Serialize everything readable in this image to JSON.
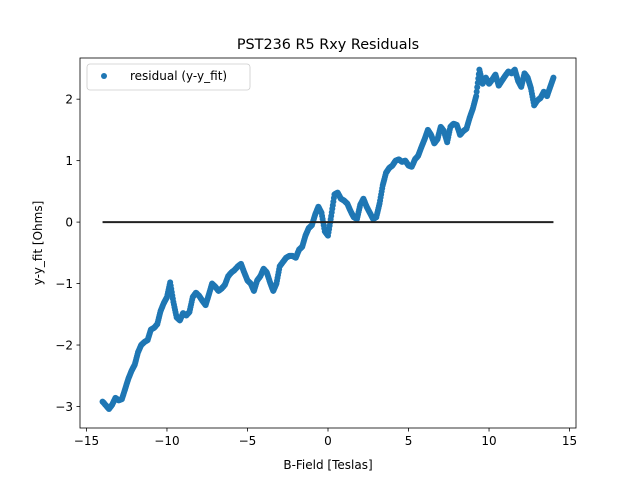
{
  "chart_data": {
    "type": "scatter",
    "title": "PST236 R5 Rxy Residuals",
    "xlabel": "B-Field [Teslas]",
    "ylabel": "y-y_fit [Ohms]",
    "xlim": [
      -15.4,
      15.4
    ],
    "ylim": [
      -3.35,
      2.67
    ],
    "xticks": [
      -15,
      -10,
      -5,
      0,
      5,
      10,
      15
    ],
    "xtick_labels": [
      "−15",
      "−10",
      "−5",
      "0",
      "5",
      "10",
      "15"
    ],
    "yticks": [
      -3,
      -2,
      -1,
      0,
      1,
      2
    ],
    "ytick_labels": [
      "−3",
      "−2",
      "−1",
      "0",
      "1",
      "2"
    ],
    "grid": false,
    "legend_position": "top-left",
    "series": [
      {
        "name": "residual (y-y_fit)",
        "kind": "scatter",
        "color": "#1f77b4",
        "x": [
          -14.0,
          -13.8,
          -13.6,
          -13.4,
          -13.2,
          -13.0,
          -12.8,
          -12.6,
          -12.4,
          -12.2,
          -12.0,
          -11.8,
          -11.6,
          -11.4,
          -11.2,
          -11.0,
          -10.8,
          -10.6,
          -10.4,
          -10.2,
          -10.0,
          -9.8,
          -9.6,
          -9.4,
          -9.2,
          -9.0,
          -8.8,
          -8.6,
          -8.4,
          -8.2,
          -8.0,
          -7.8,
          -7.6,
          -7.4,
          -7.2,
          -7.0,
          -6.8,
          -6.6,
          -6.4,
          -6.2,
          -6.0,
          -5.8,
          -5.6,
          -5.4,
          -5.2,
          -5.0,
          -4.8,
          -4.6,
          -4.4,
          -4.2,
          -4.0,
          -3.8,
          -3.6,
          -3.4,
          -3.2,
          -3.0,
          -2.8,
          -2.6,
          -2.4,
          -2.2,
          -2.0,
          -1.8,
          -1.6,
          -1.4,
          -1.2,
          -1.0,
          -0.8,
          -0.6,
          -0.4,
          -0.2,
          0.0,
          0.2,
          0.4,
          0.6,
          0.8,
          1.0,
          1.2,
          1.4,
          1.6,
          1.8,
          2.0,
          2.2,
          2.4,
          2.6,
          2.8,
          3.0,
          3.2,
          3.4,
          3.6,
          3.8,
          4.0,
          4.2,
          4.4,
          4.6,
          4.8,
          5.0,
          5.2,
          5.4,
          5.6,
          5.8,
          6.0,
          6.2,
          6.4,
          6.6,
          6.8,
          7.0,
          7.2,
          7.4,
          7.6,
          7.8,
          8.0,
          8.2,
          8.4,
          8.6,
          8.8,
          9.0,
          9.2,
          9.4,
          9.6,
          9.8,
          10.0,
          10.2,
          10.4,
          10.6,
          10.8,
          11.0,
          11.2,
          11.4,
          11.6,
          11.8,
          12.0,
          12.2,
          12.4,
          12.6,
          12.8,
          13.0,
          13.2,
          13.4,
          13.6,
          13.8,
          14.0
        ],
        "y": [
          -2.92,
          -2.98,
          -3.04,
          -2.97,
          -2.86,
          -2.9,
          -2.88,
          -2.72,
          -2.55,
          -2.42,
          -2.32,
          -2.12,
          -2.0,
          -1.95,
          -1.92,
          -1.75,
          -1.72,
          -1.66,
          -1.45,
          -1.32,
          -1.22,
          -0.98,
          -1.3,
          -1.55,
          -1.6,
          -1.48,
          -1.52,
          -1.46,
          -1.22,
          -1.15,
          -1.2,
          -1.28,
          -1.35,
          -1.18,
          -1.0,
          -1.05,
          -1.12,
          -1.08,
          -1.02,
          -0.88,
          -0.82,
          -0.78,
          -0.72,
          -0.68,
          -0.82,
          -0.95,
          -1.0,
          -1.12,
          -0.95,
          -0.88,
          -0.76,
          -0.82,
          -0.98,
          -1.12,
          -1.0,
          -0.72,
          -0.65,
          -0.58,
          -0.55,
          -0.55,
          -0.58,
          -0.45,
          -0.4,
          -0.22,
          -0.1,
          -0.05,
          0.12,
          0.25,
          0.15,
          -0.15,
          -0.22,
          0.1,
          0.45,
          0.48,
          0.38,
          0.35,
          0.3,
          0.18,
          0.08,
          0.05,
          0.28,
          0.38,
          0.25,
          0.15,
          0.05,
          0.08,
          0.3,
          0.6,
          0.8,
          0.88,
          0.92,
          1.0,
          1.02,
          0.98,
          1.0,
          0.92,
          0.9,
          1.02,
          1.08,
          1.22,
          1.35,
          1.5,
          1.42,
          1.28,
          1.35,
          1.55,
          1.48,
          1.3,
          1.55,
          1.6,
          1.58,
          1.42,
          1.48,
          1.52,
          1.7,
          1.85,
          2.05,
          2.48,
          2.25,
          2.35,
          2.25,
          2.32,
          2.4,
          2.22,
          2.3,
          2.38,
          2.45,
          2.42,
          2.48,
          2.3,
          2.2,
          2.42,
          2.35,
          2.18,
          1.9,
          1.98,
          2.02,
          2.12,
          2.05,
          2.2,
          2.35
        ]
      },
      {
        "name": "",
        "kind": "line",
        "color": "#222222",
        "x": [
          -14.0,
          14.0
        ],
        "y": [
          0,
          0
        ]
      }
    ]
  }
}
